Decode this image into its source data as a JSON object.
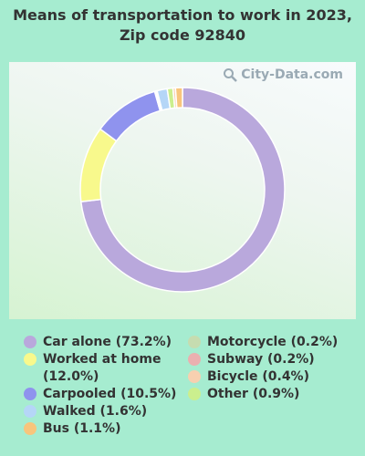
{
  "title": "Means of transportation to work in 2023, Zip code 92840",
  "watermark": "City-Data.com",
  "chart_data": {
    "type": "pie",
    "style": "donut",
    "title": "Means of transportation to work in 2023, Zip code 92840",
    "start_angle_deg": 0,
    "direction": "clockwise",
    "slices": [
      {
        "label": "Car alone (73.2%)",
        "value": 73.2,
        "color": "#b9a8dc"
      },
      {
        "label": "Worked at home (12.0%)",
        "value": 12.0,
        "color": "#f8f98c"
      },
      {
        "label": "Carpooled (10.5%)",
        "value": 10.5,
        "color": "#8f93ee"
      },
      {
        "label": "Motorcycle (0.2%)",
        "value": 0.2,
        "color": "#c6dcb0"
      },
      {
        "label": "Subway (0.2%)",
        "value": 0.2,
        "color": "#eab0b0"
      },
      {
        "label": "Walked (1.6%)",
        "value": 1.6,
        "color": "#b5d6f7"
      },
      {
        "label": "Other (0.9%)",
        "value": 0.9,
        "color": "#cbef8e"
      },
      {
        "label": "Bicycle (0.4%)",
        "value": 0.4,
        "color": "#f7d0b0"
      },
      {
        "label": "Bus (1.1%)",
        "value": 1.1,
        "color": "#f8c57c"
      }
    ],
    "legend_placement": "bottom",
    "legend": {
      "col1": [
        {
          "label": "Car alone (73.2%)",
          "color": "#b9a8dc"
        },
        {
          "label": "Worked at home (12.0%)",
          "color": "#f8f98c"
        },
        {
          "label": "Carpooled (10.5%)",
          "color": "#8f93ee"
        },
        {
          "label": "Walked (1.6%)",
          "color": "#b5d6f7"
        },
        {
          "label": "Bus (1.1%)",
          "color": "#f8c57c"
        }
      ],
      "col2": [
        {
          "label": "Motorcycle (0.2%)",
          "color": "#c6dcb0"
        },
        {
          "label": "Subway (0.2%)",
          "color": "#eab0b0"
        },
        {
          "label": "Bicycle (0.4%)",
          "color": "#f7d0b0"
        },
        {
          "label": "Other (0.9%)",
          "color": "#cbef8e"
        }
      ]
    }
  }
}
